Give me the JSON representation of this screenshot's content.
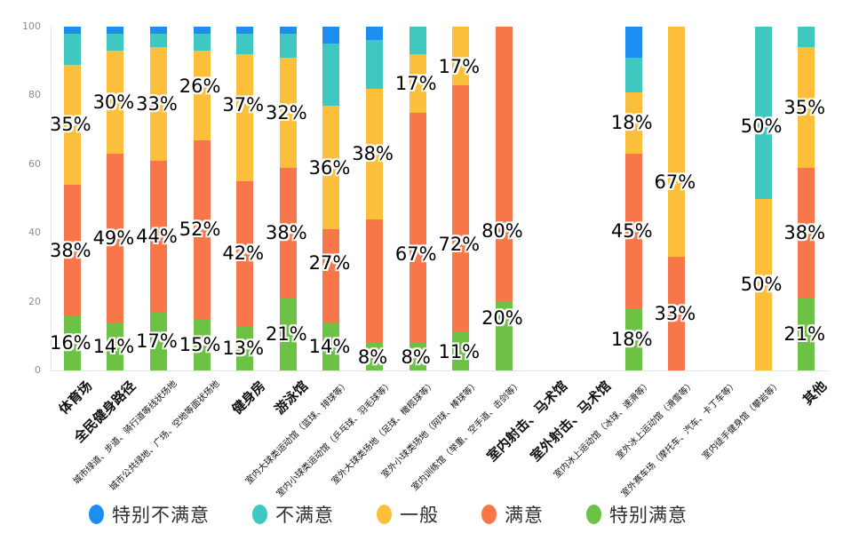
{
  "chart_data": {
    "type": "bar",
    "variant": "100-percent-stacked-column",
    "title": "",
    "xlabel": "",
    "ylabel": "",
    "ylim": [
      0,
      100
    ],
    "yticks": [
      0,
      20,
      40,
      60,
      80,
      100
    ],
    "grid": false,
    "legend_position": "bottom",
    "legend": [
      {
        "name": "特别不满意",
        "color": "#1e8df2"
      },
      {
        "name": "不满意",
        "color": "#3fc8c0"
      },
      {
        "name": "一般",
        "color": "#fbbf3b"
      },
      {
        "name": "满意",
        "color": "#f7764a"
      },
      {
        "name": "特别满意",
        "color": "#6dc144"
      }
    ],
    "stack_order_bottom_to_top": [
      "特别满意",
      "满意",
      "一般",
      "不满意",
      "特别不满意"
    ],
    "categories": [
      {
        "label": "体育场",
        "bold": true,
        "segments": [
          {
            "series": "特别满意",
            "value": 16,
            "label": "16%"
          },
          {
            "series": "满意",
            "value": 38,
            "label": "38%"
          },
          {
            "series": "一般",
            "value": 35,
            "label": "35%"
          },
          {
            "series": "不满意",
            "value": 9
          },
          {
            "series": "特别不满意",
            "value": 2
          }
        ]
      },
      {
        "label": "全民健身路径",
        "bold": true,
        "segments": [
          {
            "series": "特别满意",
            "value": 14,
            "label": "14%"
          },
          {
            "series": "满意",
            "value": 49,
            "label": "49%"
          },
          {
            "series": "一般",
            "value": 30,
            "label": "30%"
          },
          {
            "series": "不满意",
            "value": 5
          },
          {
            "series": "特别不满意",
            "value": 2
          }
        ]
      },
      {
        "label": "城市绿道、步道、骑行道等线状场地",
        "bold": false,
        "segments": [
          {
            "series": "特别满意",
            "value": 17,
            "label": "17%"
          },
          {
            "series": "满意",
            "value": 44,
            "label": "44%"
          },
          {
            "series": "一般",
            "value": 33,
            "label": "33%"
          },
          {
            "series": "不满意",
            "value": 4
          },
          {
            "series": "特别不满意",
            "value": 2
          }
        ]
      },
      {
        "label": "城市公共绿地、广场、空地等面状场地",
        "bold": false,
        "segments": [
          {
            "series": "特别满意",
            "value": 15,
            "label": "15%"
          },
          {
            "series": "满意",
            "value": 52,
            "label": "52%"
          },
          {
            "series": "一般",
            "value": 26,
            "label": "26%",
            "dy": -10
          },
          {
            "series": "不满意",
            "value": 5
          },
          {
            "series": "特别不满意",
            "value": 2
          }
        ]
      },
      {
        "label": "健身房",
        "bold": true,
        "segments": [
          {
            "series": "特别满意",
            "value": 13,
            "label": "13%"
          },
          {
            "series": "满意",
            "value": 42,
            "label": "42%"
          },
          {
            "series": "一般",
            "value": 37,
            "label": "37%",
            "dy": -15
          },
          {
            "series": "不满意",
            "value": 6
          },
          {
            "series": "特别不满意",
            "value": 2
          }
        ]
      },
      {
        "label": "游泳馆",
        "bold": true,
        "segments": [
          {
            "series": "特别满意",
            "value": 21,
            "label": "21%"
          },
          {
            "series": "满意",
            "value": 38,
            "label": "38%"
          },
          {
            "series": "一般",
            "value": 32,
            "label": "32%"
          },
          {
            "series": "不满意",
            "value": 7
          },
          {
            "series": "特别不满意",
            "value": 2
          }
        ]
      },
      {
        "label": "室内大球类运动馆（篮球、排球等）",
        "bold": false,
        "segments": [
          {
            "series": "特别满意",
            "value": 14,
            "label": "14%"
          },
          {
            "series": "满意",
            "value": 27,
            "label": "27%",
            "dy": -15
          },
          {
            "series": "一般",
            "value": 36,
            "label": "36%"
          },
          {
            "series": "不满意",
            "value": 18
          },
          {
            "series": "特别不满意",
            "value": 5
          }
        ]
      },
      {
        "label": "室内小球类运动馆（乒乓球、羽毛球等）",
        "bold": false,
        "segments": [
          {
            "series": "特别满意",
            "value": 8,
            "label": "8%"
          },
          {
            "series": "满意",
            "value": 36
          },
          {
            "series": "一般",
            "value": 38,
            "label": "38%"
          },
          {
            "series": "不满意",
            "value": 14
          },
          {
            "series": "特别不满意",
            "value": 4
          }
        ]
      },
      {
        "label": "室外大球类场地（足球、橄榄球等）",
        "bold": false,
        "segments": [
          {
            "series": "特别满意",
            "value": 8,
            "label": "8%"
          },
          {
            "series": "满意",
            "value": 67,
            "label": "67%",
            "dy": 30
          },
          {
            "series": "一般",
            "value": 17,
            "label": "17%"
          },
          {
            "series": "不满意",
            "value": 8
          }
        ]
      },
      {
        "label": "室外小球类场地（网球、棒球等）",
        "bold": false,
        "segments": [
          {
            "series": "特别满意",
            "value": 11,
            "label": "11%"
          },
          {
            "series": "满意",
            "value": 72,
            "label": "72%",
            "dy": 40
          },
          {
            "series": "一般",
            "value": 17,
            "label": "17%",
            "dy": 12
          }
        ]
      },
      {
        "label": "室内训练馆（举重、空手道、击剑等）",
        "bold": false,
        "segments": [
          {
            "series": "特别满意",
            "value": 20,
            "label": "20%",
            "dy": -20
          },
          {
            "series": "满意",
            "value": 80,
            "label": "80%",
            "dy": 75
          }
        ]
      },
      {
        "label": "室内射击、马术馆",
        "bold": true,
        "segments": []
      },
      {
        "label": "室外射击、马术馆",
        "bold": true,
        "segments": []
      },
      {
        "label": "室内冰上运动馆（冰球、速滑等）",
        "bold": false,
        "segments": [
          {
            "series": "特别满意",
            "value": 18,
            "label": "18%"
          },
          {
            "series": "满意",
            "value": 45,
            "label": "45%"
          },
          {
            "series": "一般",
            "value": 18,
            "label": "18%"
          },
          {
            "series": "不满意",
            "value": 10
          },
          {
            "series": "特别不满意",
            "value": 9
          }
        ]
      },
      {
        "label": "室外冰上运动馆（滑雪等）",
        "bold": false,
        "segments": [
          {
            "series": "满意",
            "value": 33,
            "label": "33%"
          },
          {
            "series": "一般",
            "value": 67,
            "label": "67%",
            "dy": 45
          }
        ]
      },
      {
        "label": "室外赛车场（摩托车、汽车、卡丁车等）",
        "bold": false,
        "segments": []
      },
      {
        "label": "室内徒手健身馆（攀岩等）",
        "bold": false,
        "segments": [
          {
            "series": "一般",
            "value": 50,
            "label": "50%"
          },
          {
            "series": "不满意",
            "value": 50,
            "label": "50%",
            "dy": 15
          }
        ]
      },
      {
        "label": "其他",
        "bold": true,
        "segments": [
          {
            "series": "特别满意",
            "value": 21,
            "label": "21%"
          },
          {
            "series": "满意",
            "value": 38,
            "label": "38%"
          },
          {
            "series": "一般",
            "value": 35,
            "label": "35%"
          },
          {
            "series": "不满意",
            "value": 6
          }
        ]
      }
    ]
  }
}
